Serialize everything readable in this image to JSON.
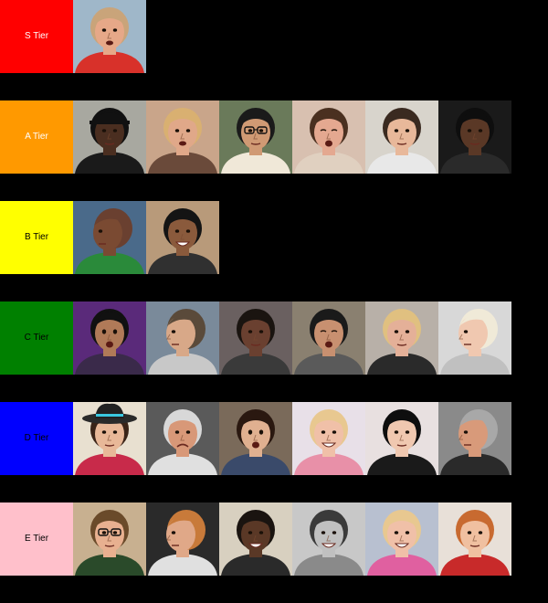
{
  "colors": {
    "background": "#000000",
    "skin_light": "#e8b89a",
    "skin_tan": "#c98f6a",
    "skin_brown": "#8a5a3c",
    "skin_dark": "#4a2e20"
  },
  "tiers": [
    {
      "label": "S Tier",
      "color": "#ff0000",
      "text_color": "#ffffff",
      "items": [
        {
          "name": "portrait-bald-man-red-shirt",
          "bg": "#9fb7c9",
          "skin": "#e6a888",
          "hair": "#c9a47a",
          "shirt": "#d8312a",
          "mood": "talk"
        }
      ]
    },
    {
      "label": "A Tier",
      "color": "#ff9900",
      "text_color": "#ffffff",
      "items": [
        {
          "name": "portrait-man-black-cap",
          "bg": "#a8a8a0",
          "skin": "#4a2e20",
          "hair": "#111111",
          "shirt": "#1a1a1a",
          "mood": "cap"
        },
        {
          "name": "portrait-blonde-woman",
          "bg": "#c9a58a",
          "skin": "#e0a889",
          "hair": "#d9b071",
          "shirt": "#6a4a3a",
          "mood": "talk"
        },
        {
          "name": "portrait-man-glasses",
          "bg": "#6a7a5a",
          "skin": "#d09a74",
          "hair": "#1a1a1a",
          "shirt": "#f0e8d8",
          "mood": "glasses"
        },
        {
          "name": "portrait-crying-baby",
          "bg": "#d8c0b0",
          "skin": "#e4a890",
          "hair": "#4a3020",
          "shirt": "#e0d0c0",
          "mood": "cry"
        },
        {
          "name": "portrait-young-man-smirk",
          "bg": "#d8d4cc",
          "skin": "#e8b89a",
          "hair": "#3a2a20",
          "shirt": "#e8e8e8",
          "mood": "neutral"
        },
        {
          "name": "portrait-woman-braids",
          "bg": "#1a1a1a",
          "skin": "#5a3826",
          "hair": "#0e0e0e",
          "shirt": "#2a2a2a",
          "mood": "neutral"
        }
      ]
    },
    {
      "label": "B Tier",
      "color": "#ffff00",
      "text_color": "#000000",
      "items": [
        {
          "name": "portrait-bald-man-profile",
          "bg": "#4a6a8a",
          "skin": "#7a4a32",
          "hair": "#6a4030",
          "shirt": "#2a8a3a",
          "mood": "profile"
        },
        {
          "name": "portrait-man-curly-hair-smile",
          "bg": "#b89a7a",
          "skin": "#8a5a3c",
          "hair": "#141414",
          "shirt": "#303030",
          "mood": "smile"
        }
      ]
    },
    {
      "label": "C Tier",
      "color": "#008000",
      "text_color": "#000000",
      "items": [
        {
          "name": "portrait-woman-dark-hair-surprised",
          "bg": "#5a2a7a",
          "skin": "#b07a58",
          "hair": "#111111",
          "shirt": "#3a2a4a",
          "mood": "surprised"
        },
        {
          "name": "portrait-man-buzzcut-profile",
          "bg": "#7a8a9a",
          "skin": "#d8a888",
          "hair": "#5a4a3a",
          "shirt": "#c8c8c8",
          "mood": "profile"
        },
        {
          "name": "portrait-man-dreadlocks",
          "bg": "#6a6060",
          "skin": "#6a4030",
          "hair": "#1a1410",
          "shirt": "#3a3a3a",
          "mood": "neutral"
        },
        {
          "name": "portrait-man-grimace",
          "bg": "#8a8070",
          "skin": "#c89070",
          "hair": "#1a1a1a",
          "shirt": "#5a5a5a",
          "mood": "cry"
        },
        {
          "name": "portrait-woman-blonde-bun",
          "bg": "#b8b0a8",
          "skin": "#e4b098",
          "hair": "#e0c080",
          "shirt": "#2a2a2a",
          "mood": "neutral"
        },
        {
          "name": "portrait-woman-platinum-profile",
          "bg": "#d8d8d8",
          "skin": "#f0c8b0",
          "hair": "#f0ead8",
          "shirt": "#c0c0c0",
          "mood": "profile"
        }
      ]
    },
    {
      "label": "D Tier",
      "color": "#0000ff",
      "text_color": "#000000",
      "items": [
        {
          "name": "portrait-woman-green-hat",
          "bg": "#e8e0d0",
          "skin": "#e8b898",
          "hair": "#3a2418",
          "shirt": "#c82a4a",
          "mood": "hat"
        },
        {
          "name": "portrait-old-man-frown",
          "bg": "#5a5a5a",
          "skin": "#d89878",
          "hair": "#d8d8d8",
          "shirt": "#e0e0e0",
          "mood": "frown"
        },
        {
          "name": "portrait-woman-bob-shocked",
          "bg": "#7a6a5a",
          "skin": "#e0b090",
          "hair": "#2a1810",
          "shirt": "#3a4a6a",
          "mood": "surprised"
        },
        {
          "name": "portrait-woman-laughing",
          "bg": "#e8e0e8",
          "skin": "#f0c0a8",
          "hair": "#e8c890",
          "shirt": "#e890a8",
          "mood": "laugh"
        },
        {
          "name": "portrait-woman-long-black-hair",
          "bg": "#e8e0e0",
          "skin": "#f0c8b0",
          "hair": "#0e0e0e",
          "shirt": "#1a1a1a",
          "mood": "neutral"
        },
        {
          "name": "portrait-man-grey-hair-suit",
          "bg": "#8a8a8a",
          "skin": "#d89a7a",
          "hair": "#a8a8a8",
          "shirt": "#2a2a2a",
          "mood": "profile"
        }
      ]
    },
    {
      "label": "E Tier",
      "color": "#ffc0cb",
      "text_color": "#000000",
      "items": [
        {
          "name": "portrait-man-glasses-vlogger",
          "bg": "#c8b090",
          "skin": "#e8b090",
          "hair": "#6a4a2a",
          "shirt": "#2a4a2a",
          "mood": "glasses"
        },
        {
          "name": "portrait-man-gaming-chair",
          "bg": "#2a2a2a",
          "skin": "#e0a888",
          "hair": "#c87a3a",
          "shirt": "#e0e0e0",
          "mood": "profile"
        },
        {
          "name": "portrait-boy-smiling",
          "bg": "#d8d0c0",
          "skin": "#5a3826",
          "hair": "#1a1410",
          "shirt": "#2a2a2a",
          "mood": "smile"
        },
        {
          "name": "portrait-man-grey-beard",
          "bg": "#c8c8c8",
          "skin": "#c0c0c0",
          "hair": "#3a3a3a",
          "shirt": "#8a8a8a",
          "mood": "smile"
        },
        {
          "name": "portrait-girl-pink-hoodie",
          "bg": "#b8c0d0",
          "skin": "#f0c0a8",
          "hair": "#e8c890",
          "shirt": "#e060a0",
          "mood": "laugh"
        },
        {
          "name": "portrait-woman-red-texas-shirt",
          "bg": "#e8e0d8",
          "skin": "#f0c0a0",
          "hair": "#c86a30",
          "shirt": "#c82a2a",
          "mood": "neutral"
        }
      ]
    }
  ]
}
